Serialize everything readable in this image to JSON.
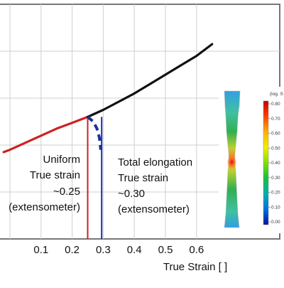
{
  "chart_data": {
    "type": "line",
    "title": "",
    "xlabel": "True Strain [ ]",
    "ylabel": "",
    "xlim": [
      -0.02,
      0.67
    ],
    "ylim": [
      0,
      1
    ],
    "x_ticks": [
      0.1,
      0.2,
      0.3,
      0.4,
      0.5,
      0.6
    ],
    "x_tick_labels": [
      "0.1",
      "0.2",
      "0.3",
      "0.4",
      "0.5",
      "0.6"
    ],
    "grid": true,
    "series": [
      {
        "color": "#cc2222",
        "x": [
          -0.02,
          0.0,
          0.05,
          0.1,
          0.15,
          0.2,
          0.25
        ],
        "y": [
          0.37,
          0.38,
          0.41,
          0.44,
          0.47,
          0.495,
          0.52
        ]
      },
      {
        "color": "#111111",
        "x": [
          0.25,
          0.3,
          0.35,
          0.4,
          0.45,
          0.5,
          0.55,
          0.6,
          0.65
        ],
        "y": [
          0.52,
          0.55,
          0.585,
          0.62,
          0.66,
          0.7,
          0.74,
          0.78,
          0.83
        ]
      },
      {
        "color": "#1a2fa0",
        "dashed": true,
        "x": [
          0.25,
          0.268,
          0.28,
          0.288,
          0.292
        ],
        "y": [
          0.52,
          0.5,
          0.47,
          0.43,
          0.38
        ]
      }
    ],
    "reference_lines": [
      {
        "x": 0.25,
        "color": "#cc2222"
      },
      {
        "x": 0.295,
        "color": "#1a2fa0"
      }
    ],
    "annotations": {
      "uniform": [
        "Uniform",
        "True strain",
        "~0.25",
        "(extensometer)"
      ],
      "total": [
        "Total elongation",
        "True strain",
        "~0.30",
        "(extensometer)"
      ]
    },
    "colorbar": {
      "title": "(log. S",
      "labels": [
        "0.80",
        "0.70",
        "0.60",
        "0.50",
        "0.40",
        "0.30",
        "0.20",
        "0.10",
        "0.00"
      ],
      "colors": [
        "#c80000",
        "#ff4000",
        "#ffb000",
        "#f0f000",
        "#80e000",
        "#10c040",
        "#00b0b0",
        "#0070e0",
        "#0010a0"
      ]
    }
  }
}
